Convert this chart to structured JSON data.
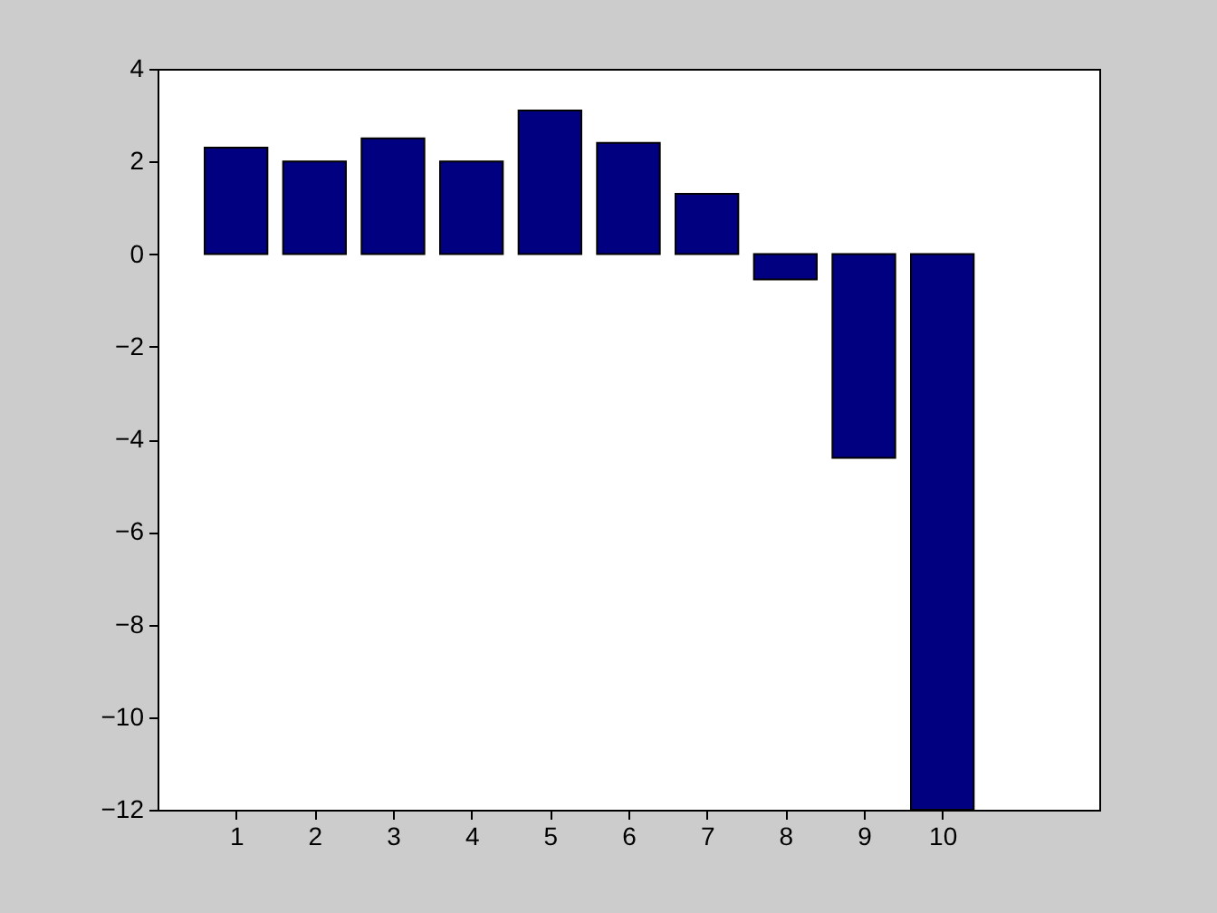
{
  "chart_data": {
    "type": "bar",
    "x": [
      1,
      2,
      3,
      4,
      5,
      6,
      7,
      8,
      9,
      10
    ],
    "values": [
      2.3,
      2.0,
      2.5,
      2.0,
      3.1,
      2.4,
      1.3,
      -0.55,
      -4.4,
      -12
    ],
    "color": "#000080",
    "xlim": [
      0,
      12
    ],
    "xticks": [
      1,
      2,
      3,
      4,
      5,
      6,
      7,
      8,
      9,
      10
    ],
    "ylim": [
      -12,
      4
    ],
    "yticks": [
      -12,
      -10,
      -8,
      -6,
      -4,
      -2,
      0,
      2,
      4
    ],
    "grid": false
  }
}
